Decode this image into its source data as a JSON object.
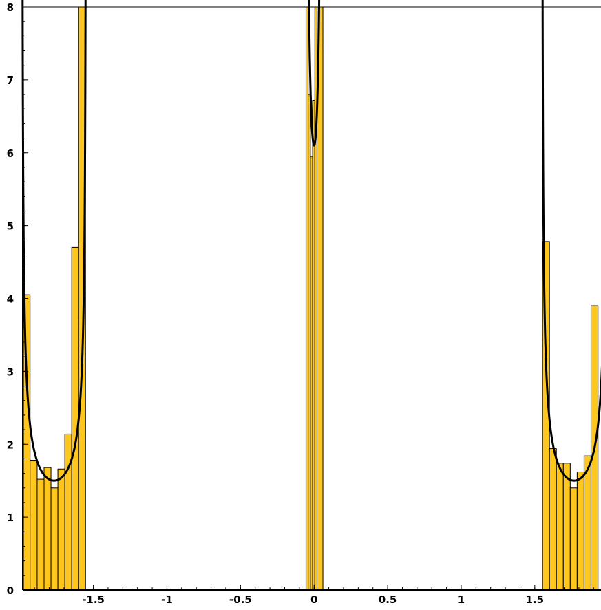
{
  "chart_data": {
    "type": "bar",
    "title": "",
    "xlabel": "",
    "ylabel": "",
    "xlim": [
      -1.98,
      1.95
    ],
    "ylim": [
      0,
      8
    ],
    "grid": false,
    "x_ticks": [
      -1.5,
      -1,
      -0.5,
      0,
      0.5,
      1,
      1.5
    ],
    "x_tick_labels": [
      "-1.5",
      "-1",
      "-0.5",
      "0",
      "0.5",
      "1",
      "1.5"
    ],
    "y_ticks": [
      0,
      1,
      2,
      3,
      4,
      5,
      6,
      7,
      8
    ],
    "y_tick_labels": [
      "0",
      "1",
      "2",
      "3",
      "4",
      "5",
      "6",
      "7",
      "8"
    ],
    "bar_color": "#ffc61e",
    "bar_edge_color": "#000000",
    "curve_color": "#000000",
    "histogram": [
      {
        "x0": -1.975,
        "x1": -1.93,
        "value": 4.05
      },
      {
        "x0": -1.93,
        "x1": -1.882,
        "value": 1.78
      },
      {
        "x0": -1.882,
        "x1": -1.835,
        "value": 1.52
      },
      {
        "x0": -1.835,
        "x1": -1.788,
        "value": 1.68
      },
      {
        "x0": -1.788,
        "x1": -1.741,
        "value": 1.4
      },
      {
        "x0": -1.741,
        "x1": -1.694,
        "value": 1.66
      },
      {
        "x0": -1.694,
        "x1": -1.647,
        "value": 2.14
      },
      {
        "x0": -1.647,
        "x1": -1.6,
        "value": 4.7
      },
      {
        "x0": -1.6,
        "x1": -1.553,
        "value": 8.0
      },
      {
        "x0": -0.055,
        "x1": -0.04,
        "value": 8.0
      },
      {
        "x0": -0.04,
        "x1": -0.025,
        "value": 6.8
      },
      {
        "x0": -0.025,
        "x1": -0.01,
        "value": 5.95
      },
      {
        "x0": -0.01,
        "x1": 0.005,
        "value": 6.72
      },
      {
        "x0": 0.005,
        "x1": 0.02,
        "value": 8.0
      },
      {
        "x0": 0.02,
        "x1": 0.06,
        "value": 8.0
      },
      {
        "x0": 1.553,
        "x1": 1.6,
        "value": 4.78
      },
      {
        "x0": 1.6,
        "x1": 1.647,
        "value": 1.94
      },
      {
        "x0": 1.647,
        "x1": 1.694,
        "value": 1.74
      },
      {
        "x0": 1.694,
        "x1": 1.741,
        "value": 1.74
      },
      {
        "x0": 1.741,
        "x1": 1.788,
        "value": 1.4
      },
      {
        "x0": 1.788,
        "x1": 1.835,
        "value": 1.62
      },
      {
        "x0": 1.835,
        "x1": 1.882,
        "value": 1.84
      },
      {
        "x0": 1.882,
        "x1": 1.93,
        "value": 3.9
      }
    ],
    "curves": [
      {
        "x_range": [
          -1.985,
          -1.55
        ],
        "center": -1.767,
        "min_value": 1.5
      },
      {
        "x_range": [
          -0.05,
          0.055
        ],
        "center": 0.0,
        "min_value": 6.1
      },
      {
        "x_range": [
          1.55,
          1.985
        ],
        "center": 1.767,
        "min_value": 1.5
      }
    ]
  }
}
